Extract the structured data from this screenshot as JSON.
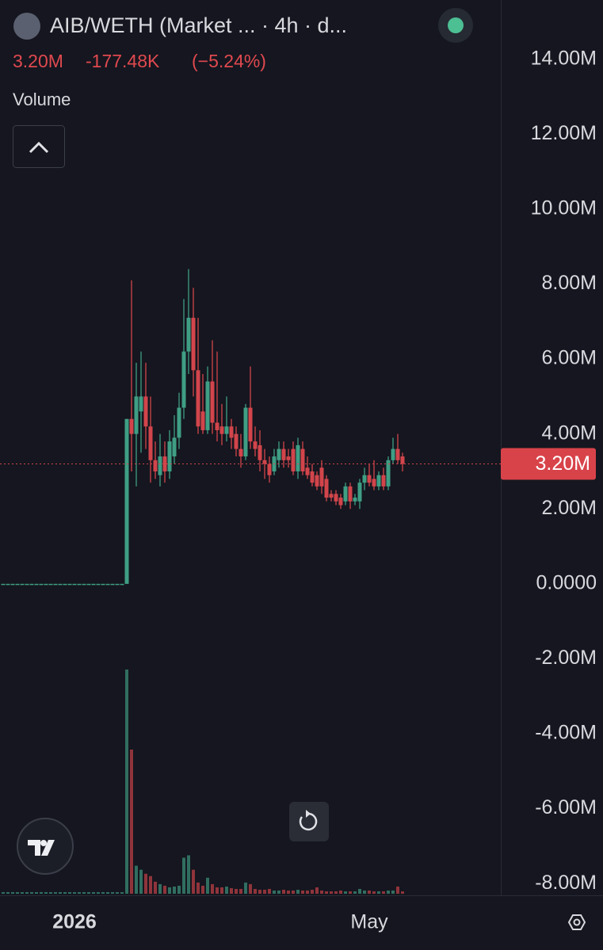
{
  "header": {
    "pair": "AIB/WETH (Market ... · 4h · d...",
    "price": "3.20M",
    "change": "-177.48K",
    "change_pct": "(−5.24%)",
    "volume_label": "Volume"
  },
  "chart_data": {
    "type": "candlestick",
    "categories": [
      null,
      null,
      null,
      null,
      null,
      null,
      null,
      null,
      null,
      null,
      null,
      null,
      null,
      null,
      null,
      "2026",
      null,
      null,
      null,
      null,
      null,
      null,
      null,
      null,
      null,
      null,
      null,
      null,
      null,
      null,
      null,
      null,
      null,
      null,
      null,
      null,
      null,
      null,
      null,
      null,
      null,
      null,
      null,
      null,
      null,
      null,
      null,
      null,
      null,
      null,
      null,
      null,
      null,
      null,
      null,
      null,
      null,
      null,
      null,
      null,
      null,
      null,
      null,
      null,
      null,
      null,
      null,
      null,
      null,
      null,
      null,
      null,
      null,
      null,
      null,
      null,
      null,
      "May",
      null,
      null,
      null,
      null,
      null,
      null,
      null
    ],
    "open": [
      0,
      0,
      0,
      0,
      0,
      0,
      0,
      0,
      0,
      0,
      0,
      0,
      0,
      0,
      0,
      0,
      0,
      0,
      0,
      0,
      0,
      0,
      0,
      0,
      0,
      0,
      0,
      4400000,
      4000000,
      4600000,
      5000000,
      4200000,
      3300000,
      2900000,
      3400000,
      3000000,
      3400000,
      3900000,
      4700000,
      6200000,
      7100000,
      5700000,
      4600000,
      4100000,
      5400000,
      4300000,
      4200000,
      4000000,
      4200000,
      4000000,
      3600000,
      3400000,
      4700000,
      3800000,
      3700000,
      3300000,
      3200000,
      3000000,
      3300000,
      3600000,
      3400000,
      3600000,
      3000000,
      3600000,
      3100000,
      3000000,
      2900000,
      3100000,
      2800000,
      2400000,
      2400000,
      2300000,
      2200000,
      2600000,
      2200000,
      2200000,
      2700000,
      2900000,
      2800000,
      2600000,
      2900000,
      2600000,
      3300000,
      3600000,
      3400000
    ],
    "high": [
      0,
      0,
      0,
      0,
      0,
      0,
      0,
      0,
      0,
      0,
      0,
      0,
      0,
      0,
      0,
      0,
      0,
      0,
      0,
      0,
      0,
      0,
      0,
      0,
      0,
      0,
      4400000,
      8100000,
      5900000,
      6200000,
      5900000,
      5000000,
      3800000,
      4000000,
      3800000,
      4100000,
      4500000,
      5100000,
      7600000,
      8400000,
      7900000,
      7100000,
      5600000,
      5800000,
      6500000,
      6200000,
      4800000,
      5000000,
      4400000,
      4200000,
      4000000,
      4800000,
      5800000,
      4200000,
      4100000,
      3600000,
      3400000,
      3600000,
      3800000,
      3800000,
      3600000,
      3800000,
      3900000,
      3800000,
      3400000,
      3200000,
      3000000,
      3300000,
      2900000,
      2500000,
      2500000,
      2400000,
      2700000,
      2700000,
      2400000,
      2800000,
      3100000,
      3200000,
      3300000,
      3000000,
      3100000,
      3400000,
      3900000,
      4000000,
      3500000
    ],
    "low": [
      0,
      0,
      0,
      0,
      0,
      0,
      0,
      0,
      0,
      0,
      0,
      0,
      0,
      0,
      0,
      0,
      0,
      0,
      0,
      0,
      0,
      0,
      0,
      0,
      0,
      0,
      0,
      3000000,
      2600000,
      3500000,
      3600000,
      2700000,
      2800000,
      2600000,
      2700000,
      2800000,
      3200000,
      3600000,
      4400000,
      5600000,
      5000000,
      4000000,
      4000000,
      4000000,
      4000000,
      3800000,
      3700000,
      3800000,
      3600000,
      3400000,
      3100000,
      3300000,
      3600000,
      3400000,
      3000000,
      2800000,
      2700000,
      2900000,
      3100000,
      3100000,
      3100000,
      2900000,
      2800000,
      2900000,
      2800000,
      2600000,
      2500000,
      2400000,
      2200000,
      2200000,
      2100000,
      2000000,
      2100000,
      2000000,
      2100000,
      2000000,
      2500000,
      2600000,
      2500000,
      2500000,
      2500000,
      2500000,
      3200000,
      3200000,
      3000000
    ],
    "close": [
      0,
      0,
      0,
      0,
      0,
      0,
      0,
      0,
      0,
      0,
      0,
      0,
      0,
      0,
      0,
      0,
      0,
      0,
      0,
      0,
      0,
      0,
      0,
      0,
      0,
      0,
      4400000,
      4000000,
      5000000,
      5000000,
      4200000,
      3300000,
      3000000,
      3400000,
      3000000,
      3800000,
      3900000,
      4700000,
      6200000,
      7100000,
      5700000,
      4200000,
      4100000,
      5400000,
      4300000,
      4100000,
      4000000,
      4200000,
      3900000,
      3600000,
      3400000,
      4700000,
      3800000,
      3600000,
      3300000,
      3200000,
      2900000,
      3400000,
      3600000,
      3300000,
      3300000,
      3000000,
      3700000,
      3000000,
      2900000,
      2700000,
      2600000,
      2600000,
      2300000,
      2300000,
      2200000,
      2100000,
      2600000,
      2200000,
      2300000,
      2700000,
      2900000,
      2700000,
      2600000,
      2900000,
      2600000,
      3300000,
      3600000,
      3300000,
      3200000
    ],
    "volume": [
      2,
      2,
      2,
      2,
      2,
      2,
      2,
      2,
      2,
      2,
      2,
      2,
      2,
      2,
      2,
      2,
      2,
      2,
      2,
      2,
      2,
      2,
      2,
      2,
      2,
      2,
      280,
      180,
      35,
      30,
      25,
      22,
      15,
      12,
      10,
      8,
      9,
      10,
      45,
      48,
      30,
      14,
      10,
      20,
      12,
      8,
      8,
      9,
      7,
      6,
      6,
      14,
      12,
      6,
      5,
      5,
      6,
      4,
      4,
      5,
      4,
      4,
      5,
      4,
      4,
      5,
      8,
      4,
      3,
      3,
      3,
      4,
      3,
      3,
      3,
      6,
      4,
      4,
      3,
      3,
      3,
      4,
      4,
      9,
      3
    ],
    "ylim": [
      -8270000,
      15580000
    ],
    "yticks": [
      {
        "value": 14000000,
        "label": "14.00M"
      },
      {
        "value": 12000000,
        "label": "12.00M"
      },
      {
        "value": 10000000,
        "label": "10.00M"
      },
      {
        "value": 8000000,
        "label": "8.00M"
      },
      {
        "value": 6000000,
        "label": "6.00M"
      },
      {
        "value": 4000000,
        "label": "4.00M"
      },
      {
        "value": 2000000,
        "label": "2.00M"
      },
      {
        "value": 0,
        "label": "0.0000"
      },
      {
        "value": -2000000,
        "label": "-2.00M"
      },
      {
        "value": -4000000,
        "label": "-4.00M"
      },
      {
        "value": -6000000,
        "label": "-6.00M"
      },
      {
        "value": -8000000,
        "label": "-8.00M"
      }
    ],
    "price_line": {
      "value": 3200000,
      "label": "3.20M"
    },
    "up_color": "#3f9e84",
    "down_color": "#d2454b"
  }
}
